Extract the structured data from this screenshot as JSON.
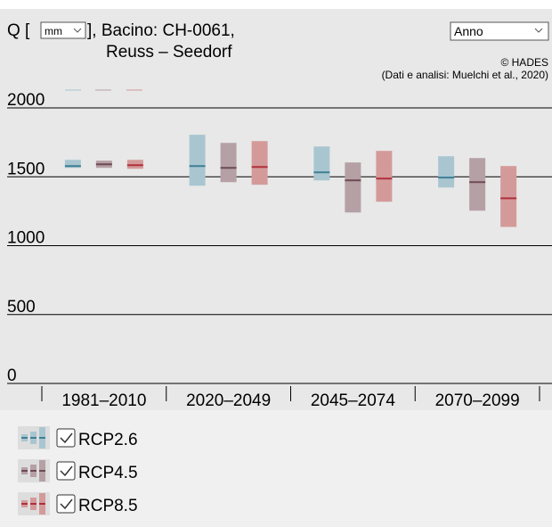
{
  "chart_data": {
    "type": "box",
    "title_prefix": "Q [",
    "unit": "mm",
    "title_suffix": "], Bacino: CH-0061,",
    "subtitle": "Reuss – Seedorf",
    "period_select": "Anno",
    "credit": "© HADES",
    "source": "(Dati e analisi: Muelchi et al., 2020)",
    "categories": [
      "1981–2010",
      "2020–2049",
      "2045–2074",
      "2070–2099"
    ],
    "ylim": [
      0,
      2000
    ],
    "yticks": [
      0,
      500,
      1000,
      1500,
      2000
    ],
    "grid": true,
    "series": [
      {
        "name": "RCP2.6",
        "color": "#3d7f96",
        "box_color": "#a9c6d0",
        "checked": true,
        "low": [
          1565,
          1435,
          1474,
          1422
        ],
        "high": [
          1623,
          1805,
          1720,
          1649
        ],
        "median": [
          1578,
          1578,
          1532,
          1494
        ]
      },
      {
        "name": "RCP4.5",
        "color": "#6e4a55",
        "box_color": "#b5a0a6",
        "checked": true,
        "low": [
          1565,
          1461,
          1241,
          1254
        ],
        "high": [
          1617,
          1746,
          1604,
          1636
        ],
        "median": [
          1591,
          1565,
          1474,
          1461
        ]
      },
      {
        "name": "RCP8.5",
        "color": "#b0303a",
        "box_color": "#d49a9a",
        "checked": true,
        "low": [
          1558,
          1442,
          1319,
          1136
        ],
        "high": [
          1623,
          1759,
          1688,
          1578
        ],
        "median": [
          1584,
          1571,
          1487,
          1344
        ]
      }
    ]
  }
}
